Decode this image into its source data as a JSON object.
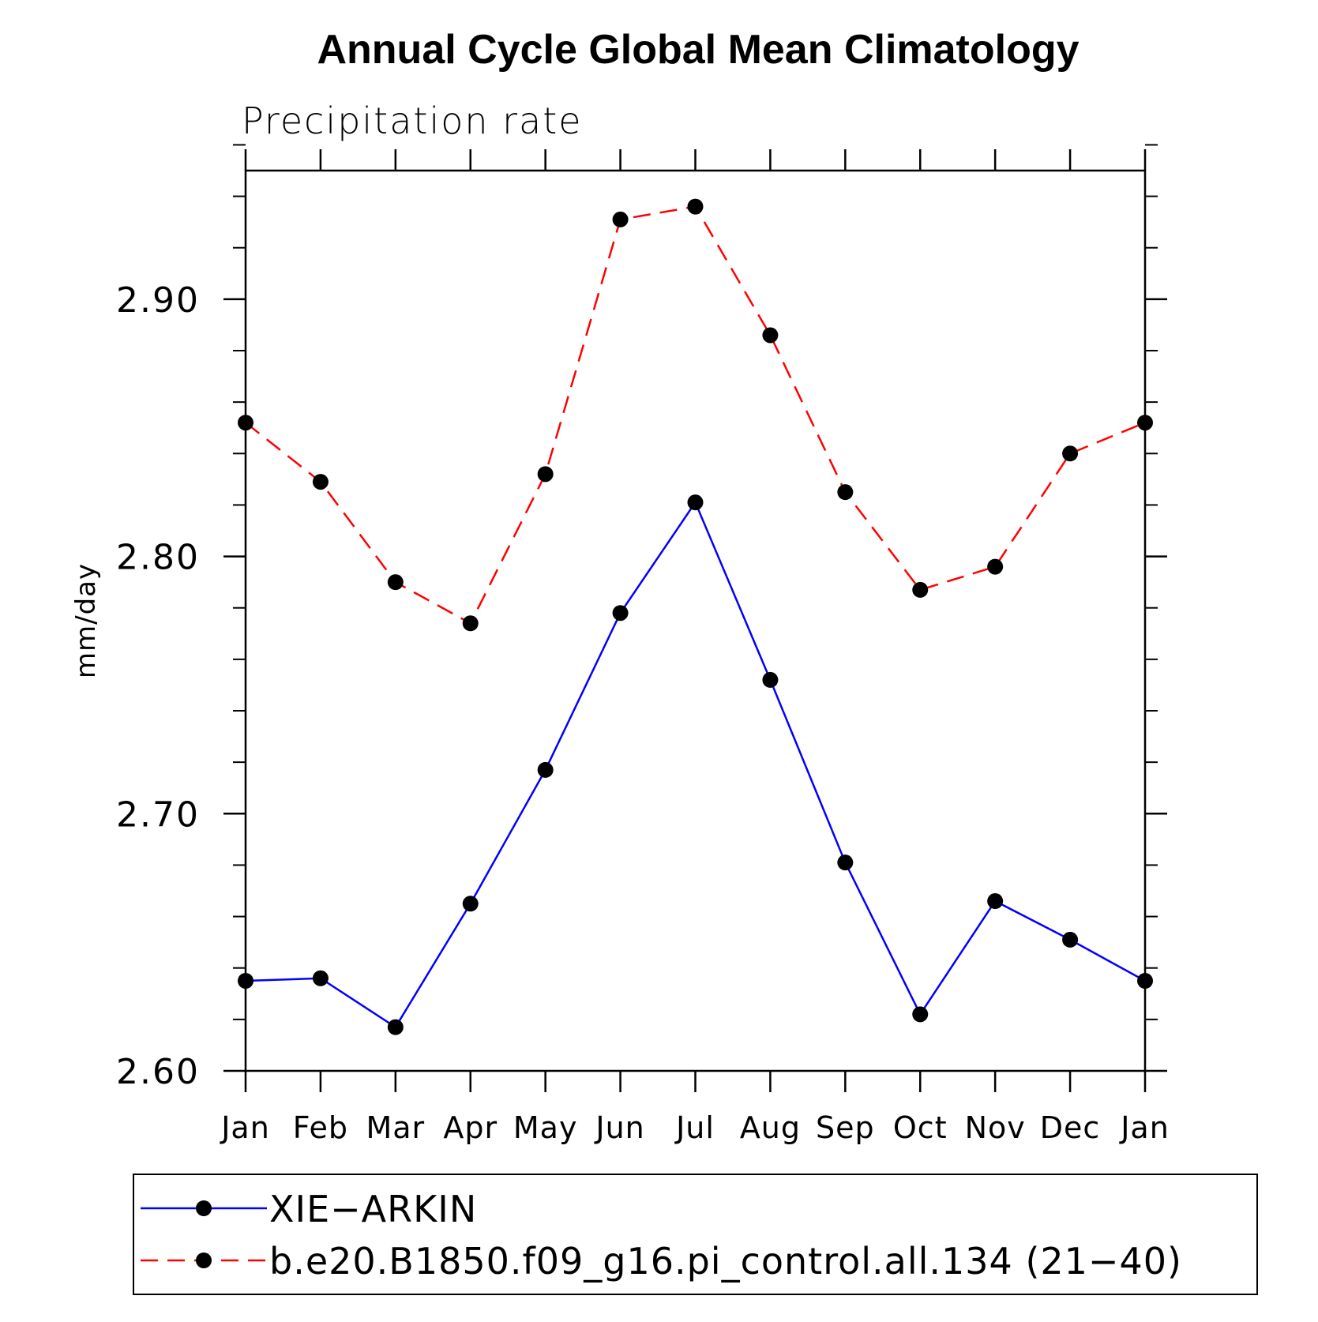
{
  "chart_data": {
    "type": "line",
    "title": "Annual Cycle Global Mean Climatology",
    "subtitle": "Precipitation rate",
    "xlabel": "",
    "ylabel": "mm/day",
    "categories": [
      "Jan",
      "Feb",
      "Mar",
      "Apr",
      "May",
      "Jun",
      "Jul",
      "Aug",
      "Sep",
      "Oct",
      "Nov",
      "Dec",
      "Jan"
    ],
    "ylim": [
      2.6,
      2.95
    ],
    "yticks_major": [
      2.6,
      2.7,
      2.8,
      2.9
    ],
    "ytick_labels": [
      "2.60",
      "2.70",
      "2.80",
      "2.90"
    ],
    "yticks_minor_step": 0.02,
    "grid": false,
    "legend_position": "bottom",
    "series": [
      {
        "name": "XIE−ARKIN",
        "color": "#0000ff",
        "line_style": "solid",
        "marker": "filled-circle",
        "values": [
          2.635,
          2.636,
          2.617,
          2.665,
          2.717,
          2.778,
          2.821,
          2.752,
          2.681,
          2.622,
          2.666,
          2.651,
          2.635
        ]
      },
      {
        "name": "b.e20.B1850.f09_g16.pi_control.all.134 (21−40)",
        "color": "#ff0000",
        "line_style": "dashed",
        "marker": "filled-circle",
        "values": [
          2.852,
          2.829,
          2.79,
          2.774,
          2.832,
          2.931,
          2.936,
          2.886,
          2.825,
          2.787,
          2.796,
          2.84,
          2.852
        ]
      }
    ]
  }
}
